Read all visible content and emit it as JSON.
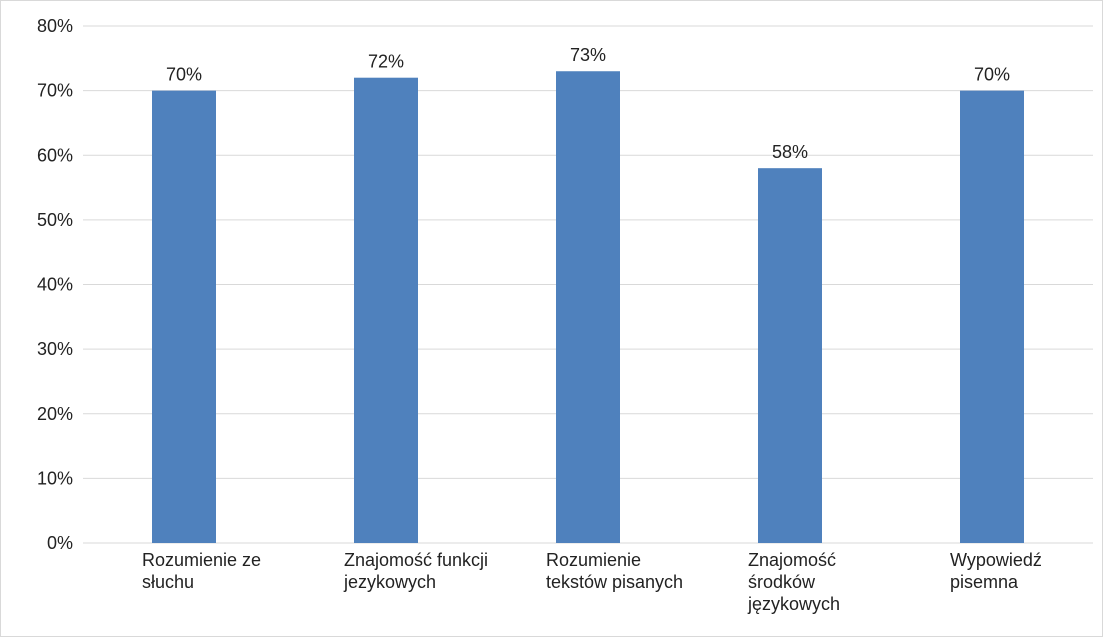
{
  "chart_data": {
    "type": "bar",
    "categories": [
      [
        "Rozumienie ze",
        "słuchu"
      ],
      [
        "Znajomość funkcji",
        "jezykowych"
      ],
      [
        "Rozumienie",
        "tekstów pisanych"
      ],
      [
        "Znajomość",
        "środków",
        "językowych"
      ],
      [
        "Wypowiedź",
        "pisemna"
      ]
    ],
    "values": [
      0.7,
      0.72,
      0.73,
      0.58,
      0.7
    ],
    "data_labels": [
      "70%",
      "72%",
      "73%",
      "58%",
      "70%"
    ],
    "y_ticks": [
      "0%",
      "10%",
      "20%",
      "30%",
      "40%",
      "50%",
      "60%",
      "70%",
      "80%"
    ],
    "ylim": [
      0,
      0.8
    ],
    "title": "",
    "xlabel": "",
    "ylabel": "",
    "grid": true,
    "legend": "none",
    "colors": {
      "bar": "#4f81bd",
      "grid": "#d9d9d9",
      "text": "#222222"
    }
  }
}
